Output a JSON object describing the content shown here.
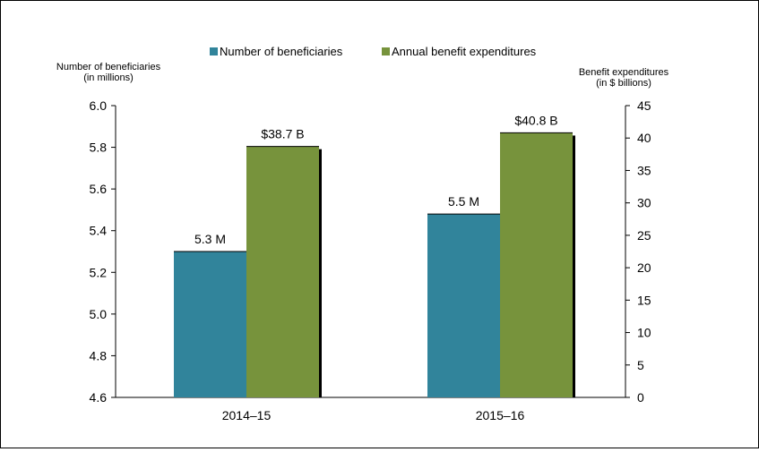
{
  "chart_data": {
    "type": "bar",
    "categories": [
      "2014–15",
      "2015–16"
    ],
    "series": [
      {
        "name": "Number of beneficiaries",
        "axis": "left",
        "values": [
          5.3,
          5.48
        ],
        "labels": [
          "5.3 M",
          "5.5 M"
        ],
        "color": "#31849B"
      },
      {
        "name": "Annual benefit expenditures",
        "axis": "right",
        "values": [
          38.7,
          40.8
        ],
        "labels": [
          "$38.7 B",
          "$40.8 B"
        ],
        "color": "#77933C"
      }
    ],
    "left_axis": {
      "title_line1": "Number of beneficiaries",
      "title_line2": "(in millions)",
      "ylim": [
        4.6,
        6.0
      ],
      "ticks": [
        "6.0",
        "5.8",
        "5.6",
        "5.4",
        "5.2",
        "5.0",
        "4.8",
        "4.6"
      ]
    },
    "right_axis": {
      "title_line1": "Benefit expenditures",
      "title_line2": "(in $ billions)",
      "ylim": [
        0,
        45
      ],
      "ticks": [
        "45",
        "40",
        "35",
        "30",
        "25",
        "20",
        "15",
        "10",
        "5",
        "0"
      ]
    },
    "legend_position": "top-center",
    "grid": false
  }
}
